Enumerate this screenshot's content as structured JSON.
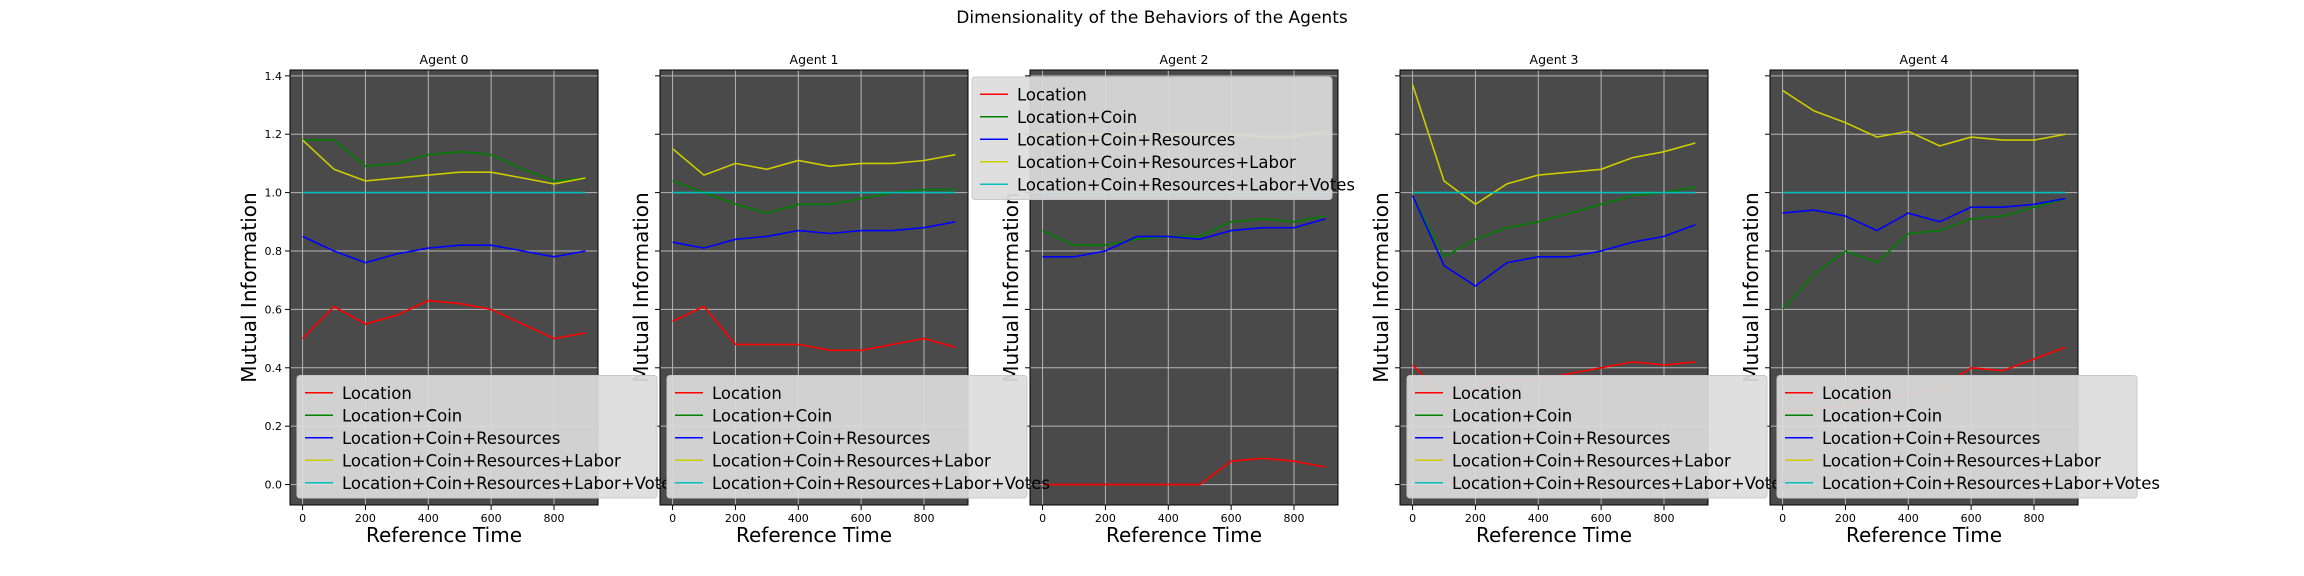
{
  "figure": {
    "title": "Dimensionality of the Behaviors of the Agents",
    "colors": {
      "plot_background": "#4a4a4a",
      "grid": "#b5b5b5",
      "legend_face": "#dcdcdc",
      "series": [
        "#ff0000",
        "#008000",
        "#0000ff",
        "#cccc00",
        "#00bfbf"
      ]
    }
  },
  "chart_data": [
    {
      "type": "line",
      "title": "Agent 0",
      "xlabel": "Reference Time",
      "ylabel": "Mutual Information",
      "xlim": [
        -40,
        940
      ],
      "ylim": [
        -0.07,
        1.42
      ],
      "xticks": [
        0,
        200,
        400,
        600,
        800
      ],
      "yticks": [
        0.0,
        0.2,
        0.4,
        0.6,
        0.8,
        1.0,
        1.2,
        1.4
      ],
      "grid": true,
      "legend_placement": "lower-left",
      "x": [
        0,
        100,
        200,
        300,
        400,
        500,
        600,
        700,
        800,
        900
      ],
      "series": [
        {
          "name": "Location",
          "color": "#ff0000",
          "values": [
            0.5,
            0.61,
            0.55,
            0.58,
            0.63,
            0.62,
            0.6,
            0.55,
            0.5,
            0.52
          ]
        },
        {
          "name": "Location+Coin",
          "color": "#008000",
          "values": [
            1.18,
            1.18,
            1.09,
            1.1,
            1.13,
            1.14,
            1.13,
            1.08,
            1.04,
            1.05
          ]
        },
        {
          "name": "Location+Coin+Resources",
          "color": "#0000ff",
          "values": [
            0.85,
            0.8,
            0.76,
            0.79,
            0.81,
            0.82,
            0.82,
            0.8,
            0.78,
            0.8
          ]
        },
        {
          "name": "Location+Coin+Resources+Labor",
          "color": "#cccc00",
          "values": [
            1.18,
            1.08,
            1.04,
            1.05,
            1.06,
            1.07,
            1.07,
            1.05,
            1.03,
            1.05
          ]
        },
        {
          "name": "Location+Coin+Resources+Labor+Votes",
          "color": "#00bfbf",
          "values": [
            1.0,
            1.0,
            1.0,
            1.0,
            1.0,
            1.0,
            1.0,
            1.0,
            1.0,
            1.0
          ]
        }
      ]
    },
    {
      "type": "line",
      "title": "Agent 1",
      "xlabel": "Reference Time",
      "ylabel": "Mutual Information",
      "xlim": [
        -40,
        940
      ],
      "ylim": [
        -0.07,
        1.42
      ],
      "xticks": [
        0,
        200,
        400,
        600,
        800
      ],
      "yticks": [
        0.0,
        0.2,
        0.4,
        0.6,
        0.8,
        1.0,
        1.2,
        1.4
      ],
      "grid": true,
      "legend_placement": "lower-left",
      "x": [
        0,
        100,
        200,
        300,
        400,
        500,
        600,
        700,
        800,
        900
      ],
      "series": [
        {
          "name": "Location",
          "color": "#ff0000",
          "values": [
            0.56,
            0.61,
            0.48,
            0.48,
            0.48,
            0.46,
            0.46,
            0.48,
            0.5,
            0.47
          ]
        },
        {
          "name": "Location+Coin",
          "color": "#008000",
          "values": [
            1.04,
            1.0,
            0.96,
            0.93,
            0.96,
            0.96,
            0.98,
            1.0,
            1.01,
            1.01
          ]
        },
        {
          "name": "Location+Coin+Resources",
          "color": "#0000ff",
          "values": [
            0.83,
            0.81,
            0.84,
            0.85,
            0.87,
            0.86,
            0.87,
            0.87,
            0.88,
            0.9
          ]
        },
        {
          "name": "Location+Coin+Resources+Labor",
          "color": "#cccc00",
          "values": [
            1.15,
            1.06,
            1.1,
            1.08,
            1.11,
            1.09,
            1.1,
            1.1,
            1.11,
            1.13
          ]
        },
        {
          "name": "Location+Coin+Resources+Labor+Votes",
          "color": "#00bfbf",
          "values": [
            1.0,
            1.0,
            1.0,
            1.0,
            1.0,
            1.0,
            1.0,
            1.0,
            1.0,
            1.0
          ]
        }
      ]
    },
    {
      "type": "line",
      "title": "Agent 2",
      "xlabel": "Reference Time",
      "ylabel": "Mutual Information",
      "xlim": [
        -40,
        940
      ],
      "ylim": [
        -0.07,
        1.42
      ],
      "xticks": [
        0,
        200,
        400,
        600,
        800
      ],
      "yticks": [
        0.0,
        0.2,
        0.4,
        0.6,
        0.8,
        1.0,
        1.2,
        1.4
      ],
      "grid": true,
      "legend_placement": "upper-right",
      "x": [
        0,
        100,
        200,
        300,
        400,
        500,
        600,
        700,
        800,
        900
      ],
      "series": [
        {
          "name": "Location",
          "color": "#ff0000",
          "values": [
            0.0,
            0.0,
            0.0,
            0.0,
            0.0,
            0.0,
            0.08,
            0.09,
            0.08,
            0.06
          ]
        },
        {
          "name": "Location+Coin",
          "color": "#008000",
          "values": [
            0.87,
            0.82,
            0.82,
            0.84,
            0.85,
            0.85,
            0.9,
            0.91,
            0.9,
            0.92
          ]
        },
        {
          "name": "Location+Coin+Resources",
          "color": "#0000ff",
          "values": [
            0.78,
            0.78,
            0.8,
            0.85,
            0.85,
            0.84,
            0.87,
            0.88,
            0.88,
            0.91
          ]
        },
        {
          "name": "Location+Coin+Resources+Labor",
          "color": "#cccc00",
          "values": [
            1.2,
            1.2,
            1.2,
            1.2,
            1.2,
            1.2,
            1.2,
            1.19,
            1.19,
            1.21
          ]
        },
        {
          "name": "Location+Coin+Resources+Labor+Votes",
          "color": "#00bfbf",
          "values": [
            1.0,
            1.0,
            1.0,
            1.0,
            1.0,
            1.0,
            1.0,
            1.0,
            1.0,
            1.0
          ]
        }
      ]
    },
    {
      "type": "line",
      "title": "Agent 3",
      "xlabel": "Reference Time",
      "ylabel": "Mutual Information",
      "xlim": [
        -40,
        940
      ],
      "ylim": [
        -0.07,
        1.42
      ],
      "xticks": [
        0,
        200,
        400,
        600,
        800
      ],
      "yticks": [
        0.0,
        0.2,
        0.4,
        0.6,
        0.8,
        1.0,
        1.2,
        1.4
      ],
      "grid": true,
      "legend_placement": "lower-left",
      "x": [
        0,
        100,
        200,
        300,
        400,
        500,
        600,
        700,
        800,
        900
      ],
      "series": [
        {
          "name": "Location",
          "color": "#ff0000",
          "values": [
            0.41,
            0.3,
            0.33,
            0.36,
            0.36,
            0.38,
            0.4,
            0.42,
            0.41,
            0.42
          ]
        },
        {
          "name": "Location+Coin",
          "color": "#008000",
          "values": [
            0.99,
            0.78,
            0.84,
            0.88,
            0.9,
            0.93,
            0.96,
            0.99,
            1.0,
            1.02
          ]
        },
        {
          "name": "Location+Coin+Resources",
          "color": "#0000ff",
          "values": [
            0.99,
            0.75,
            0.68,
            0.76,
            0.78,
            0.78,
            0.8,
            0.83,
            0.85,
            0.89
          ]
        },
        {
          "name": "Location+Coin+Resources+Labor",
          "color": "#cccc00",
          "values": [
            1.37,
            1.04,
            0.96,
            1.03,
            1.06,
            1.07,
            1.08,
            1.12,
            1.14,
            1.17
          ]
        },
        {
          "name": "Location+Coin+Resources+Labor+Votes",
          "color": "#00bfbf",
          "values": [
            1.0,
            1.0,
            1.0,
            1.0,
            1.0,
            1.0,
            1.0,
            1.0,
            1.0,
            1.0
          ]
        }
      ]
    },
    {
      "type": "line",
      "title": "Agent 4",
      "xlabel": "Reference Time",
      "ylabel": "Mutual Information",
      "xlim": [
        -40,
        940
      ],
      "ylim": [
        -0.07,
        1.42
      ],
      "xticks": [
        0,
        200,
        400,
        600,
        800
      ],
      "yticks": [
        0.0,
        0.2,
        0.4,
        0.6,
        0.8,
        1.0,
        1.2,
        1.4
      ],
      "grid": true,
      "legend_placement": "lower-left",
      "x": [
        0,
        100,
        200,
        300,
        400,
        500,
        600,
        700,
        800,
        900
      ],
      "series": [
        {
          "name": "Location",
          "color": "#ff0000",
          "values": [
            0.25,
            0.26,
            0.27,
            0.29,
            0.31,
            0.33,
            0.4,
            0.39,
            0.43,
            0.47
          ]
        },
        {
          "name": "Location+Coin",
          "color": "#008000",
          "values": [
            0.6,
            0.72,
            0.8,
            0.76,
            0.86,
            0.87,
            0.91,
            0.92,
            0.95,
            0.98
          ]
        },
        {
          "name": "Location+Coin+Resources",
          "color": "#0000ff",
          "values": [
            0.93,
            0.94,
            0.92,
            0.87,
            0.93,
            0.9,
            0.95,
            0.95,
            0.96,
            0.98
          ]
        },
        {
          "name": "Location+Coin+Resources+Labor",
          "color": "#cccc00",
          "values": [
            1.35,
            1.28,
            1.24,
            1.19,
            1.21,
            1.16,
            1.19,
            1.18,
            1.18,
            1.2
          ]
        },
        {
          "name": "Location+Coin+Resources+Labor+Votes",
          "color": "#00bfbf",
          "values": [
            1.0,
            1.0,
            1.0,
            1.0,
            1.0,
            1.0,
            1.0,
            1.0,
            1.0,
            1.0
          ]
        }
      ]
    }
  ]
}
